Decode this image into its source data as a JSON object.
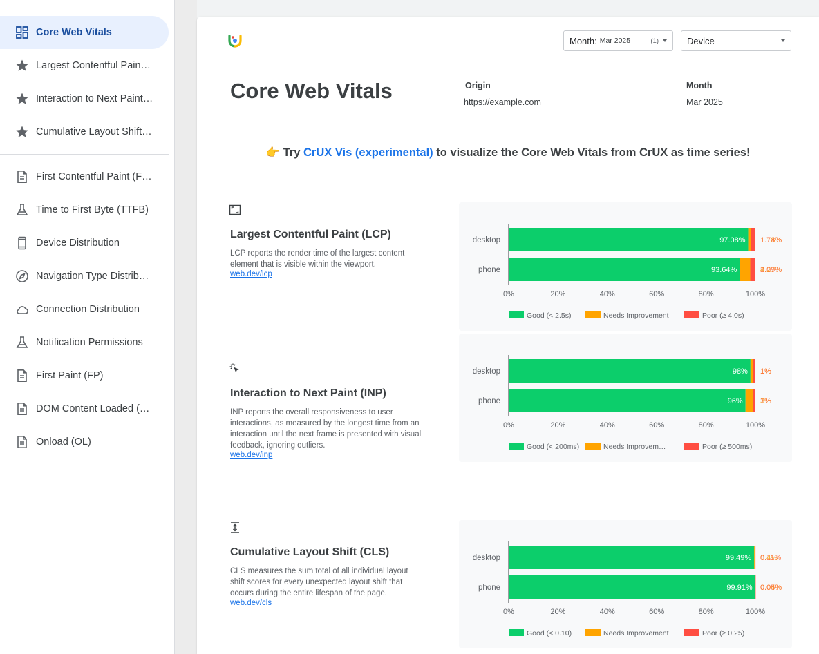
{
  "sidebar": {
    "items": [
      {
        "label": "Core Web Vitals",
        "icon": "dashboard-icon",
        "active": true
      },
      {
        "label": "Largest Contentful Paint (LCP)",
        "icon": "star-icon"
      },
      {
        "label": "Interaction to Next Paint (INP)",
        "icon": "star-icon"
      },
      {
        "label": "Cumulative Layout Shift (CLS)",
        "icon": "star-icon"
      },
      {
        "label": "First Contentful Paint (FCP)",
        "icon": "document-icon"
      },
      {
        "label": "Time to First Byte (TTFB)",
        "icon": "flask-icon"
      },
      {
        "label": "Device Distribution",
        "icon": "phone-icon"
      },
      {
        "label": "Navigation Type Distribution",
        "icon": "compass-icon"
      },
      {
        "label": "Connection Distribution",
        "icon": "cloud-icon"
      },
      {
        "label": "Notification Permissions",
        "icon": "flask-icon"
      },
      {
        "label": "First Paint (FP)",
        "icon": "document-icon"
      },
      {
        "label": "DOM Content Loaded (DCL)",
        "icon": "document-icon"
      },
      {
        "label": "Onload (OL)",
        "icon": "document-icon"
      }
    ]
  },
  "filters": {
    "month_label": "Month:",
    "month_value": "Mar 2025",
    "month_count": "(1)",
    "device_label": "Device"
  },
  "header": {
    "title": "Core Web Vitals",
    "origin_label": "Origin",
    "origin_value": "https://example.com",
    "month_label": "Month",
    "month_value": "Mar 2025"
  },
  "promo": {
    "emoji": "👉",
    "prefix": "Try",
    "link": "CrUX Vis (experimental)",
    "suffix": "to visualize the Core Web Vitals from CrUX as time series!"
  },
  "metrics": [
    {
      "icon": "lcp-frame-icon",
      "title": "Largest Contentful Paint (LCP)",
      "description": "LCP reports the render time of the largest content element that is visible within the viewport.",
      "link": "web.dev/lcp"
    },
    {
      "icon": "cursor-click-icon",
      "title": "Interaction to Next Paint (INP)",
      "description": "INP reports the overall responsiveness to user interactions, as measured by the longest time from an interaction until the next frame is presented with visual feedback, ignoring outliers.",
      "link": "web.dev/inp"
    },
    {
      "icon": "vertical-shift-icon",
      "title": "Cumulative Layout Shift (CLS)",
      "description": "CLS measures the sum total of all individual layout shift scores for every unexpected layout shift that occurs during the entire lifespan of the page.",
      "link": "web.dev/cls"
    }
  ],
  "colors": {
    "good": "#0cce6b",
    "needs_improvement": "#ffa400",
    "poor": "#ff4e42"
  },
  "chart_data": [
    {
      "type": "bar",
      "orientation": "horizontal-stacked",
      "categories": [
        "desktop",
        "phone"
      ],
      "series": [
        {
          "name": "Good (< 2.5s)",
          "values": [
            97.08,
            93.64
          ],
          "labels": [
            "97.08%",
            "93.64%"
          ]
        },
        {
          "name": "Needs Improvement",
          "values": [
            1.18,
            4.27
          ],
          "labels": [
            "1.18%",
            "4.27%"
          ]
        },
        {
          "name": "Poor (≥ 4.0s)",
          "values": [
            1.74,
            2.09
          ],
          "labels": [
            "1.74%",
            "2.09%"
          ]
        }
      ],
      "xticks": [
        "0%",
        "20%",
        "40%",
        "60%",
        "80%",
        "100%"
      ],
      "xlim": [
        0,
        100
      ],
      "legend": "bottom"
    },
    {
      "type": "bar",
      "orientation": "horizontal-stacked",
      "categories": [
        "desktop",
        "phone"
      ],
      "series": [
        {
          "name": "Good (< 200ms)",
          "values": [
            98,
            96
          ],
          "labels": [
            "98%",
            "96%"
          ]
        },
        {
          "name": "Needs Improvement",
          "values": [
            1,
            3
          ],
          "labels": [
            "1%",
            "3%"
          ]
        },
        {
          "name": "Poor (≥ 500ms)",
          "values": [
            1,
            1
          ],
          "labels": [
            "1%",
            "1%"
          ]
        }
      ],
      "legend_display": [
        "Good (< 200ms)",
        "Needs Improvem…",
        "Poor (≥ 500ms)"
      ],
      "xticks": [
        "0%",
        "20%",
        "40%",
        "60%",
        "80%",
        "100%"
      ],
      "xlim": [
        0,
        100
      ],
      "legend": "bottom"
    },
    {
      "type": "bar",
      "orientation": "horizontal-stacked",
      "categories": [
        "desktop",
        "phone"
      ],
      "series": [
        {
          "name": "Good (< 0.10)",
          "values": [
            99.49,
            99.91
          ],
          "labels": [
            "99.49%",
            "99.91%"
          ]
        },
        {
          "name": "Needs Improvement",
          "values": [
            0.4,
            0.04
          ],
          "labels": [
            "0.4%",
            "0.04%"
          ]
        },
        {
          "name": "Poor (≥ 0.25)",
          "values": [
            0.11,
            0.05
          ],
          "labels": [
            "0.11%",
            "0.05%"
          ]
        }
      ],
      "xticks": [
        "0%",
        "20%",
        "40%",
        "60%",
        "80%",
        "100%"
      ],
      "xlim": [
        0,
        100
      ],
      "legend": "bottom"
    }
  ]
}
